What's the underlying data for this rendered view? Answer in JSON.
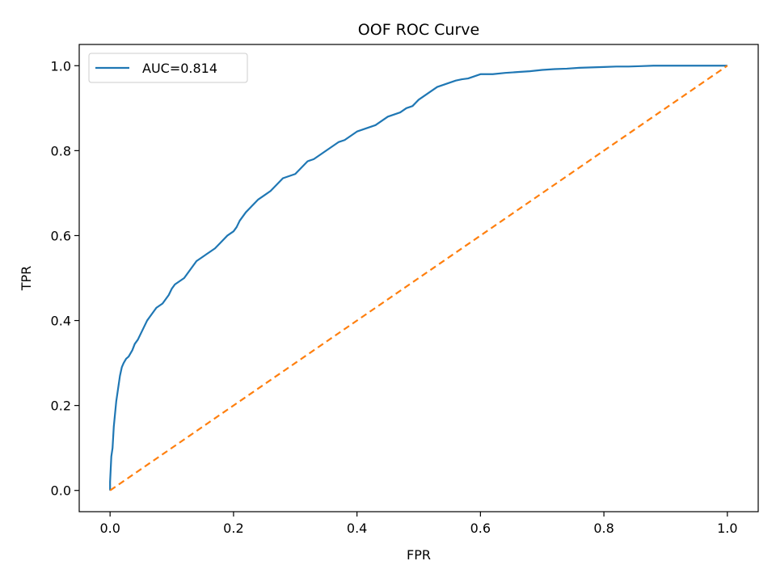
{
  "chart_data": {
    "type": "line",
    "title": "OOF ROC Curve",
    "xlabel": "FPR",
    "ylabel": "TPR",
    "xlim": [
      -0.05,
      1.05
    ],
    "ylim": [
      -0.05,
      1.05
    ],
    "x_ticks": [
      "0.0",
      "0.2",
      "0.4",
      "0.6",
      "0.8",
      "1.0"
    ],
    "y_ticks": [
      "0.0",
      "0.2",
      "0.4",
      "0.6",
      "0.8",
      "1.0"
    ],
    "grid": false,
    "legend_position": "upper-left",
    "series": [
      {
        "name": "AUC=0.814",
        "color": "#1f77b4",
        "style": "solid",
        "x": [
          0.0,
          0.0,
          0.002,
          0.004,
          0.006,
          0.008,
          0.01,
          0.013,
          0.016,
          0.019,
          0.022,
          0.026,
          0.03,
          0.036,
          0.04,
          0.045,
          0.05,
          0.055,
          0.06,
          0.065,
          0.07,
          0.075,
          0.08,
          0.085,
          0.09,
          0.095,
          0.1,
          0.105,
          0.11,
          0.115,
          0.12,
          0.13,
          0.14,
          0.15,
          0.16,
          0.17,
          0.18,
          0.19,
          0.2,
          0.205,
          0.21,
          0.22,
          0.23,
          0.24,
          0.25,
          0.26,
          0.27,
          0.28,
          0.29,
          0.3,
          0.31,
          0.32,
          0.33,
          0.34,
          0.35,
          0.36,
          0.37,
          0.38,
          0.39,
          0.4,
          0.41,
          0.42,
          0.43,
          0.44,
          0.45,
          0.46,
          0.47,
          0.48,
          0.49,
          0.5,
          0.51,
          0.52,
          0.53,
          0.54,
          0.55,
          0.56,
          0.57,
          0.58,
          0.59,
          0.6,
          0.62,
          0.64,
          0.66,
          0.68,
          0.7,
          0.72,
          0.74,
          0.76,
          0.78,
          0.8,
          0.82,
          0.84,
          0.86,
          0.88,
          0.9,
          0.95,
          1.0
        ],
        "y": [
          0.0,
          0.02,
          0.08,
          0.1,
          0.15,
          0.18,
          0.21,
          0.24,
          0.27,
          0.29,
          0.3,
          0.31,
          0.315,
          0.33,
          0.345,
          0.355,
          0.37,
          0.385,
          0.4,
          0.41,
          0.42,
          0.43,
          0.435,
          0.44,
          0.45,
          0.46,
          0.475,
          0.485,
          0.49,
          0.495,
          0.5,
          0.52,
          0.54,
          0.55,
          0.56,
          0.57,
          0.585,
          0.6,
          0.61,
          0.62,
          0.635,
          0.655,
          0.67,
          0.685,
          0.695,
          0.705,
          0.72,
          0.735,
          0.74,
          0.745,
          0.76,
          0.775,
          0.78,
          0.79,
          0.8,
          0.81,
          0.82,
          0.825,
          0.835,
          0.845,
          0.85,
          0.855,
          0.86,
          0.87,
          0.88,
          0.885,
          0.89,
          0.9,
          0.905,
          0.92,
          0.93,
          0.94,
          0.95,
          0.955,
          0.96,
          0.965,
          0.968,
          0.97,
          0.975,
          0.98,
          0.98,
          0.983,
          0.985,
          0.987,
          0.99,
          0.992,
          0.993,
          0.995,
          0.996,
          0.997,
          0.998,
          0.998,
          0.999,
          1.0,
          1.0,
          1.0,
          1.0
        ]
      },
      {
        "color": "#ff7f0e",
        "style": "dashed",
        "x": [
          0.0,
          1.0
        ],
        "y": [
          0.0,
          1.0
        ]
      }
    ]
  }
}
